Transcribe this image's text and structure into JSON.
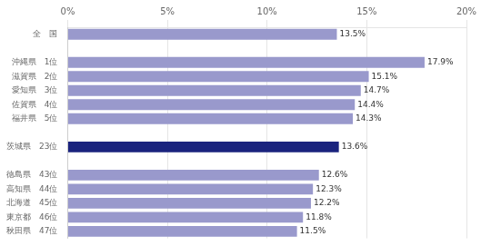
{
  "chart_data": {
    "type": "bar",
    "orientation": "horizontal",
    "categories": [
      "全　国",
      null,
      "沖縄県　1位",
      "滋賀県　2位",
      "愛知県　3位",
      "佐賀県　4位",
      "福井県　5位",
      null,
      "茨城県　23位",
      null,
      "徳島県　43位",
      "高知県　44位",
      "北海道　45位",
      "東京都　46位",
      "秋田県　47位"
    ],
    "values": [
      13.5,
      null,
      17.9,
      15.1,
      14.7,
      14.4,
      14.3,
      null,
      13.6,
      null,
      12.6,
      12.3,
      12.2,
      11.8,
      11.5
    ],
    "value_labels": [
      "13.5%",
      null,
      "17.9%",
      "15.1%",
      "14.7%",
      "14.4%",
      "14.3%",
      null,
      "13.6%",
      null,
      "12.6%",
      "12.3%",
      "12.2%",
      "11.8%",
      "11.5%"
    ],
    "colors": [
      "#9999cc",
      null,
      "#9999cc",
      "#9999cc",
      "#9999cc",
      "#9999cc",
      "#9999cc",
      null,
      "#1a237e",
      null,
      "#9999cc",
      "#9999cc",
      "#9999cc",
      "#9999cc",
      "#9999cc"
    ],
    "xlim": [
      0,
      20
    ],
    "xticks": [
      {
        "value": 0,
        "label": "0%"
      },
      {
        "value": 5,
        "label": "5%"
      },
      {
        "value": 10,
        "label": "10%"
      },
      {
        "value": 15,
        "label": "15%"
      },
      {
        "value": 20,
        "label": "20%"
      }
    ],
    "data_labels": true,
    "grid": true
  }
}
